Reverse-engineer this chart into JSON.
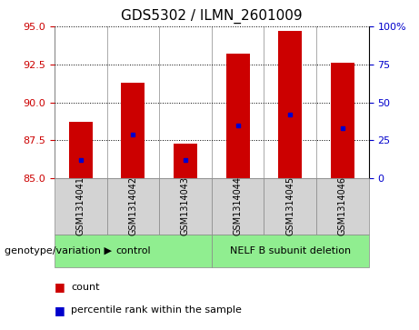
{
  "title": "GDS5302 / ILMN_2601009",
  "samples": [
    "GSM1314041",
    "GSM1314042",
    "GSM1314043",
    "GSM1314044",
    "GSM1314045",
    "GSM1314046"
  ],
  "bar_tops": [
    88.7,
    91.3,
    87.3,
    93.2,
    94.7,
    92.6
  ],
  "bar_base": 85.0,
  "blue_dots": [
    86.2,
    87.9,
    86.2,
    88.5,
    89.2,
    88.3
  ],
  "ylim_left": [
    85,
    95
  ],
  "ylim_right": [
    0,
    100
  ],
  "yticks_left": [
    85,
    87.5,
    90,
    92.5,
    95
  ],
  "yticks_right": [
    0,
    25,
    50,
    75,
    100
  ],
  "yticklabels_right": [
    "0",
    "25",
    "50",
    "75",
    "100%"
  ],
  "bar_color": "#cc0000",
  "dot_color": "#0000cc",
  "bar_width": 0.45,
  "groups": [
    {
      "label": "control",
      "start": 0,
      "end": 2,
      "color": "#90ee90"
    },
    {
      "label": "NELF B subunit deletion",
      "start": 3,
      "end": 5,
      "color": "#90ee90"
    }
  ],
  "group_label_prefix": "genotype/variation",
  "legend_items": [
    {
      "color": "#cc0000",
      "label": "count"
    },
    {
      "color": "#0000cc",
      "label": "percentile rank within the sample"
    }
  ],
  "grid_color": "black",
  "grid_style": "dotted",
  "tick_label_color_left": "#cc0000",
  "tick_label_color_right": "#0000cc",
  "sample_box_color": "#d3d3d3",
  "title_fontsize": 11,
  "tick_fontsize": 8,
  "sample_label_fontsize": 7,
  "group_label_fontsize": 8,
  "legend_fontsize": 8
}
